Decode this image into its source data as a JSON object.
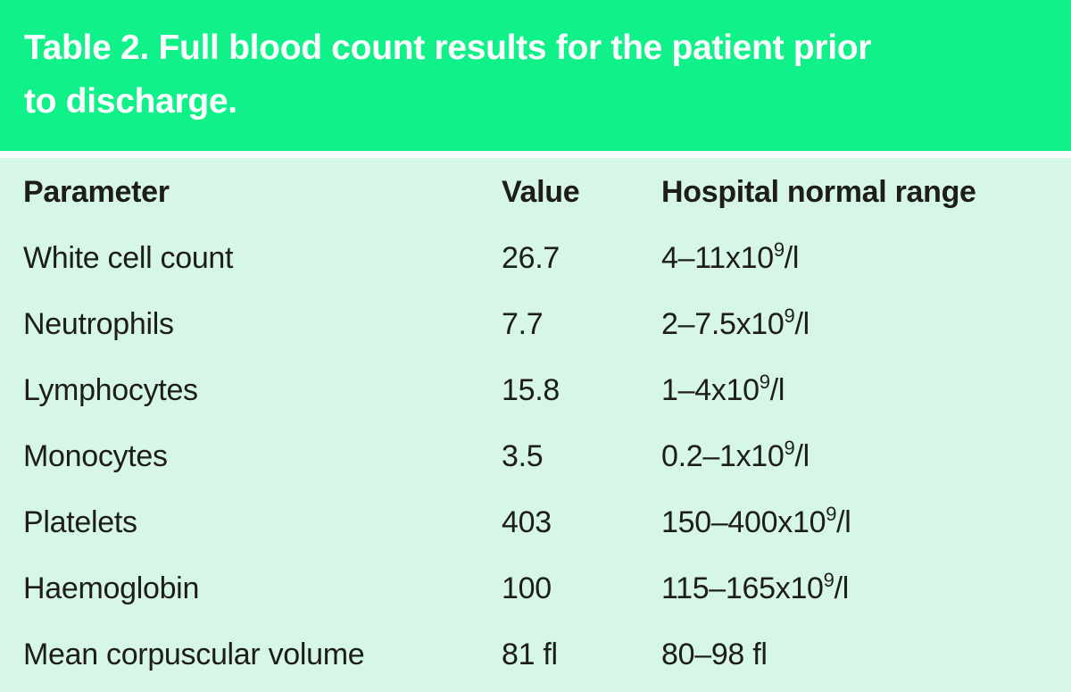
{
  "title": {
    "lines": [
      "Table 2. Full blood count results for the patient prior",
      "to discharge."
    ]
  },
  "colors": {
    "header_bg": "#10f18a",
    "body_bg": "#d7f7e6",
    "title_text": "#ffffff",
    "text": "#1d1d1b",
    "separator": "#ffffff"
  },
  "table": {
    "columns": [
      "Parameter",
      "Value",
      "Hospital normal range"
    ],
    "rows": [
      {
        "parameter": "White cell count",
        "value": "26.7",
        "range": {
          "base": "4–11x10",
          "sup": "9",
          "tail": "/l"
        }
      },
      {
        "parameter": "Neutrophils",
        "value": "7.7",
        "range": {
          "base": "2–7.5x10",
          "sup": "9",
          "tail": "/l"
        }
      },
      {
        "parameter": "Lymphocytes",
        "value": "15.8",
        "range": {
          "base": "1–4x10",
          "sup": "9",
          "tail": "/l"
        }
      },
      {
        "parameter": "Monocytes",
        "value": "3.5",
        "range": {
          "base": "0.2–1x10",
          "sup": "9",
          "tail": "/l"
        }
      },
      {
        "parameter": "Platelets",
        "value": "403",
        "range": {
          "base": "150–400x10",
          "sup": "9",
          "tail": "/l"
        }
      },
      {
        "parameter": "Haemoglobin",
        "value": "100",
        "range": {
          "base": "115–165x10",
          "sup": "9",
          "tail": "/l"
        }
      },
      {
        "parameter": "Mean corpuscular volume",
        "value": "81 fl",
        "range": {
          "base": "80–98 fl",
          "sup": "",
          "tail": ""
        }
      }
    ]
  }
}
